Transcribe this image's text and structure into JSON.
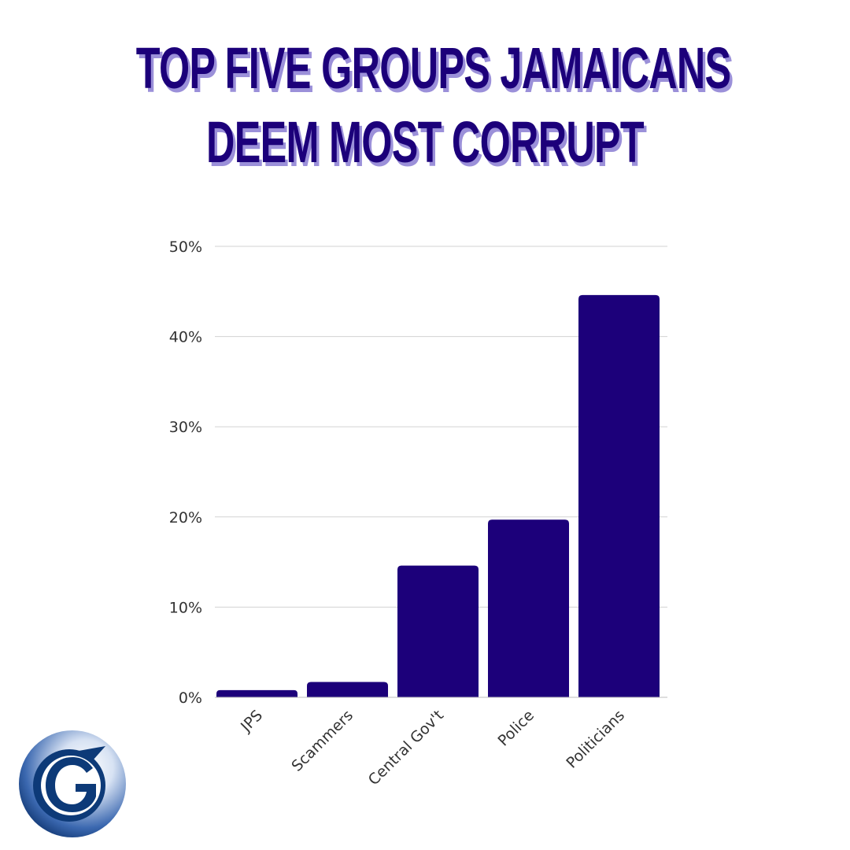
{
  "title_lines": [
    "TOP FIVE GROUPS JAMAICANS",
    "DEEM MOST CORRUPT"
  ],
  "colors": {
    "bar": "#1c007a",
    "title": "#1c007a",
    "title_shadow": "#9b90d9",
    "grid": "#d3d3d3",
    "logo_dark": "#0d3a78",
    "logo_light": "#e8eef8"
  },
  "logo": {
    "icon": "gleaner-g-logo-icon"
  },
  "chart_data": {
    "type": "bar",
    "title": "TOP FIVE GROUPS JAMAICANS DEEM MOST CORRUPT",
    "categories": [
      "JPS",
      "Scammers",
      "Central Gov't",
      "Police",
      "Politicians"
    ],
    "values": [
      0.8,
      1.7,
      14.6,
      19.7,
      44.6
    ],
    "unit": "%",
    "ylim": [
      0,
      50
    ],
    "yticks": [
      "0%",
      "10%",
      "20%",
      "30%",
      "40%",
      "50%"
    ],
    "xlabel": "",
    "ylabel": "",
    "grid": true,
    "legend": "none"
  }
}
